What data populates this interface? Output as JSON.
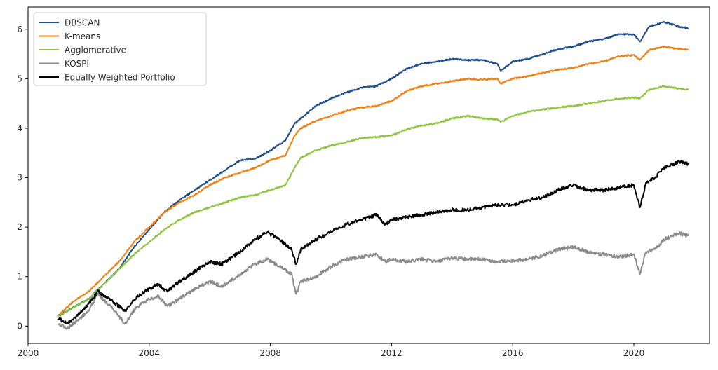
{
  "chart_data": {
    "type": "line",
    "title": "",
    "xlabel": "",
    "ylabel": "",
    "xlim": [
      2000,
      2022.5
    ],
    "ylim": [
      -0.35,
      6.45
    ],
    "x_ticks": [
      2000,
      2004,
      2008,
      2012,
      2016,
      2020
    ],
    "x_tick_labels": [
      "2000",
      "2004",
      "2008",
      "2012",
      "2016",
      "2020"
    ],
    "y_ticks": [
      0,
      1,
      2,
      3,
      4,
      5,
      6
    ],
    "y_tick_labels": [
      "0",
      "1",
      "2",
      "3",
      "4",
      "5",
      "6"
    ],
    "grid": false,
    "legend_position": "top-left",
    "series": [
      {
        "name": "DBSCAN",
        "color": "#1f4e8c",
        "x": [
          2001.0,
          2001.5,
          2002.0,
          2002.5,
          2003.0,
          2003.5,
          2004.0,
          2004.5,
          2005.0,
          2005.5,
          2006.0,
          2006.5,
          2007.0,
          2007.5,
          2008.0,
          2008.5,
          2008.8,
          2009.0,
          2009.5,
          2010.0,
          2010.5,
          2011.0,
          2011.5,
          2012.0,
          2012.5,
          2013.0,
          2013.5,
          2014.0,
          2014.5,
          2015.0,
          2015.5,
          2015.6,
          2016.0,
          2016.5,
          2017.0,
          2017.5,
          2018.0,
          2018.5,
          2019.0,
          2019.5,
          2020.0,
          2020.2,
          2020.5,
          2021.0,
          2021.5,
          2021.8
        ],
        "y": [
          0.2,
          0.38,
          0.55,
          0.85,
          1.15,
          1.6,
          1.95,
          2.3,
          2.55,
          2.75,
          2.95,
          3.15,
          3.35,
          3.38,
          3.55,
          3.75,
          4.1,
          4.2,
          4.45,
          4.6,
          4.72,
          4.82,
          4.85,
          5.0,
          5.2,
          5.3,
          5.35,
          5.4,
          5.38,
          5.38,
          5.3,
          5.15,
          5.35,
          5.4,
          5.5,
          5.6,
          5.65,
          5.75,
          5.8,
          5.9,
          5.9,
          5.75,
          6.05,
          6.15,
          6.05,
          6.02
        ]
      },
      {
        "name": "K-means",
        "color": "#f07f14",
        "x": [
          2001.0,
          2001.5,
          2002.0,
          2002.5,
          2003.0,
          2003.5,
          2004.0,
          2004.5,
          2005.0,
          2005.5,
          2006.0,
          2006.5,
          2007.0,
          2007.5,
          2008.0,
          2008.5,
          2008.8,
          2009.0,
          2009.5,
          2010.0,
          2010.5,
          2011.0,
          2011.5,
          2012.0,
          2012.5,
          2013.0,
          2013.5,
          2014.0,
          2014.5,
          2015.0,
          2015.5,
          2015.6,
          2016.0,
          2016.5,
          2017.0,
          2017.5,
          2018.0,
          2018.5,
          2019.0,
          2019.5,
          2020.0,
          2020.2,
          2020.5,
          2021.0,
          2021.5,
          2021.8
        ],
        "y": [
          0.22,
          0.5,
          0.7,
          1.0,
          1.3,
          1.7,
          2.0,
          2.3,
          2.5,
          2.65,
          2.85,
          3.0,
          3.1,
          3.2,
          3.35,
          3.45,
          3.85,
          4.0,
          4.15,
          4.25,
          4.35,
          4.42,
          4.45,
          4.55,
          4.75,
          4.85,
          4.9,
          4.95,
          5.0,
          4.98,
          5.0,
          4.9,
          5.0,
          5.05,
          5.12,
          5.18,
          5.22,
          5.3,
          5.35,
          5.45,
          5.48,
          5.38,
          5.58,
          5.65,
          5.6,
          5.58
        ]
      },
      {
        "name": "Agglomerative",
        "color": "#8cc63f",
        "x": [
          2001.0,
          2001.5,
          2002.0,
          2002.5,
          2003.0,
          2003.5,
          2004.0,
          2004.5,
          2005.0,
          2005.5,
          2006.0,
          2006.5,
          2007.0,
          2007.5,
          2008.0,
          2008.5,
          2008.8,
          2009.0,
          2009.5,
          2010.0,
          2010.5,
          2011.0,
          2011.5,
          2012.0,
          2012.5,
          2013.0,
          2013.5,
          2014.0,
          2014.5,
          2015.0,
          2015.5,
          2015.6,
          2016.0,
          2016.5,
          2017.0,
          2017.5,
          2018.0,
          2018.5,
          2019.0,
          2019.5,
          2020.0,
          2020.2,
          2020.5,
          2021.0,
          2021.5,
          2021.8
        ],
        "y": [
          0.2,
          0.38,
          0.55,
          0.85,
          1.15,
          1.45,
          1.7,
          1.95,
          2.15,
          2.3,
          2.4,
          2.5,
          2.6,
          2.65,
          2.75,
          2.85,
          3.2,
          3.4,
          3.55,
          3.65,
          3.72,
          3.8,
          3.82,
          3.85,
          3.98,
          4.05,
          4.1,
          4.2,
          4.25,
          4.2,
          4.18,
          4.12,
          4.25,
          4.33,
          4.38,
          4.42,
          4.45,
          4.5,
          4.55,
          4.6,
          4.62,
          4.6,
          4.78,
          4.85,
          4.8,
          4.78
        ]
      },
      {
        "name": "KOSPI",
        "color": "#8c8c8c",
        "x": [
          2001.0,
          2001.3,
          2001.7,
          2002.0,
          2002.3,
          2002.8,
          2003.2,
          2003.6,
          2004.0,
          2004.3,
          2004.6,
          2005.0,
          2005.5,
          2006.0,
          2006.4,
          2007.0,
          2007.5,
          2007.9,
          2008.3,
          2008.7,
          2008.85,
          2009.0,
          2009.5,
          2010.0,
          2010.5,
          2011.0,
          2011.5,
          2011.8,
          2012.0,
          2012.5,
          2013.0,
          2013.5,
          2014.0,
          2014.5,
          2015.0,
          2015.5,
          2016.0,
          2016.5,
          2017.0,
          2017.5,
          2018.0,
          2018.5,
          2019.0,
          2019.5,
          2020.0,
          2020.2,
          2020.4,
          2020.7,
          2021.0,
          2021.5,
          2021.8
        ],
        "y": [
          0.05,
          -0.05,
          0.15,
          0.3,
          0.65,
          0.35,
          0.05,
          0.4,
          0.55,
          0.6,
          0.4,
          0.55,
          0.75,
          0.9,
          0.8,
          1.05,
          1.25,
          1.35,
          1.2,
          1.05,
          0.65,
          0.9,
          1.0,
          1.2,
          1.35,
          1.4,
          1.45,
          1.3,
          1.35,
          1.3,
          1.35,
          1.3,
          1.38,
          1.35,
          1.35,
          1.3,
          1.32,
          1.35,
          1.42,
          1.55,
          1.6,
          1.5,
          1.45,
          1.4,
          1.45,
          1.05,
          1.5,
          1.55,
          1.75,
          1.88,
          1.82
        ]
      },
      {
        "name": "Equally Weighted Portfolio",
        "color": "#000000",
        "x": [
          2001.0,
          2001.3,
          2001.7,
          2002.0,
          2002.3,
          2002.8,
          2003.2,
          2003.6,
          2004.0,
          2004.3,
          2004.6,
          2005.0,
          2005.5,
          2006.0,
          2006.4,
          2007.0,
          2007.5,
          2007.9,
          2008.3,
          2008.7,
          2008.85,
          2009.0,
          2009.5,
          2010.0,
          2010.5,
          2011.0,
          2011.5,
          2011.8,
          2012.0,
          2012.5,
          2013.0,
          2013.5,
          2014.0,
          2014.5,
          2015.0,
          2015.5,
          2016.0,
          2016.5,
          2017.0,
          2017.5,
          2018.0,
          2018.5,
          2019.0,
          2019.5,
          2020.0,
          2020.2,
          2020.4,
          2020.7,
          2021.0,
          2021.5,
          2021.8
        ],
        "y": [
          0.15,
          0.05,
          0.25,
          0.45,
          0.7,
          0.5,
          0.3,
          0.6,
          0.75,
          0.85,
          0.7,
          0.9,
          1.1,
          1.3,
          1.25,
          1.5,
          1.75,
          1.9,
          1.75,
          1.55,
          1.25,
          1.55,
          1.75,
          1.9,
          2.05,
          2.15,
          2.25,
          2.05,
          2.15,
          2.2,
          2.25,
          2.3,
          2.35,
          2.35,
          2.4,
          2.45,
          2.45,
          2.55,
          2.6,
          2.75,
          2.85,
          2.75,
          2.75,
          2.8,
          2.85,
          2.4,
          2.9,
          3.0,
          3.2,
          3.32,
          3.28
        ]
      }
    ]
  }
}
